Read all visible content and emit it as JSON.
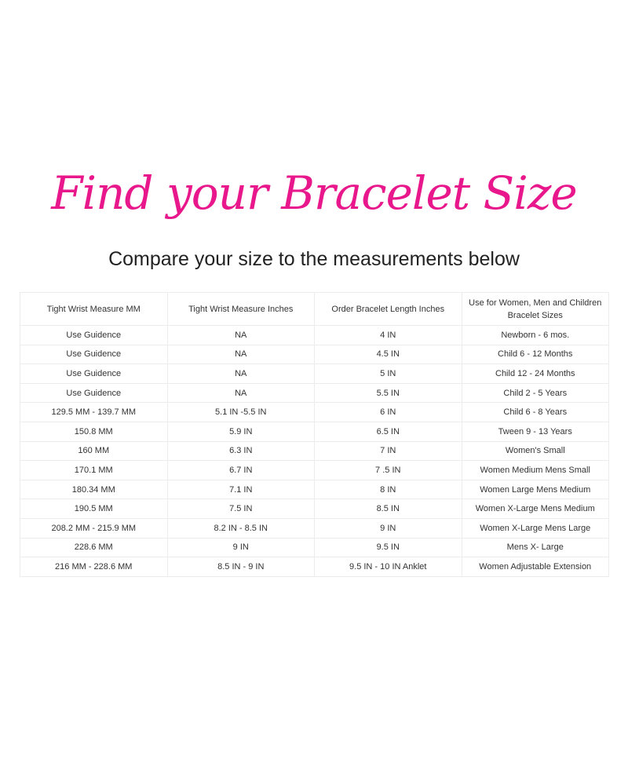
{
  "title": "Find your Bracelet Size",
  "subtitle": "Compare your size to the measurements below",
  "accent_color": "#e8178c",
  "table": {
    "headers": [
      "Tight Wrist Measure MM",
      "Tight Wrist Measure Inches",
      "Order Bracelet Length Inches",
      "Use for Women, Men and Children Bracelet Sizes"
    ],
    "rows": [
      [
        "Use Guidence",
        "NA",
        "4 IN",
        "Newborn - 6 mos."
      ],
      [
        "Use Guidence",
        "NA",
        "4.5 IN",
        "Child 6 - 12 Months"
      ],
      [
        "Use Guidence",
        "NA",
        "5 IN",
        "Child 12 - 24 Months"
      ],
      [
        "Use Guidence",
        "NA",
        "5.5 IN",
        "Child 2 - 5 Years"
      ],
      [
        "129.5 MM - 139.7 MM",
        "5.1 IN -5.5 IN",
        "6 IN",
        "Child 6 - 8 Years"
      ],
      [
        "150.8 MM",
        "5.9 IN",
        "6.5 IN",
        "Tween 9 - 13 Years"
      ],
      [
        "160 MM",
        "6.3 IN",
        "7 IN",
        "Women's Small"
      ],
      [
        "170.1 MM",
        "6.7 IN",
        "7 .5 IN",
        "Women Medium Mens Small"
      ],
      [
        "180.34 MM",
        "7.1 IN",
        "8 IN",
        "Women Large Mens Medium"
      ],
      [
        "190.5 MM",
        "7.5 IN",
        "8.5 IN",
        "Women X-Large Mens Medium"
      ],
      [
        "208.2 MM - 215.9 MM",
        "8.2 IN - 8.5 IN",
        "9 IN",
        "Women X-Large Mens Large"
      ],
      [
        "228.6 MM",
        "9 IN",
        "9.5 IN",
        "Mens X- Large"
      ],
      [
        "216 MM - 228.6 MM",
        "8.5 IN - 9 IN",
        "9.5 IN - 10 IN Anklet",
        "Women Adjustable Extension"
      ]
    ]
  }
}
